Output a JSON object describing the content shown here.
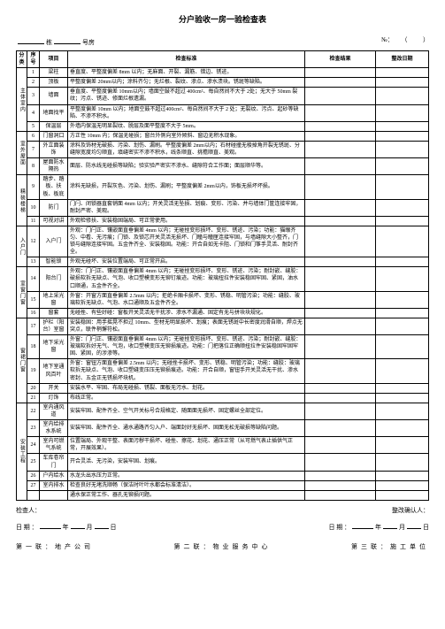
{
  "title": "分户验收一房一验检查表",
  "header": {
    "building_label": "栋",
    "room_label": "号房",
    "no_label": "№：",
    "paren_open": "（",
    "paren_close": "）"
  },
  "columns": {
    "cat": "分类",
    "seq": "序号",
    "item": "项目",
    "std": "检查标准",
    "res": "检查结果",
    "date": "整改日期"
  },
  "sections": [
    {
      "cat": "主体室内",
      "rows": [
        {
          "seq": "1",
          "item": "梁柱",
          "std": "垂直度、平整度偏差 8mm 以内；无麻面、开裂、漏筋、错边、锈迹。"
        },
        {
          "seq": "2",
          "item": "顶板",
          "std": "平整度偏差 20mm以内；涂料齐匀；无烂根、裂纹、渗点、渗水渍块。锈斑等缺陷。"
        },
        {
          "seq": "3",
          "item": "墙面",
          "std": "垂直度、平整度偏差 10mm以内；墙面空鼓不超过 400cm²、每自然间不大于 2处；无大于 50mm 裂纹；污点、锈迹、修面烂根遗漏。"
        },
        {
          "seq": "4",
          "item": "地面找平",
          "std": "平整度偏差 10mm 以内；地面空鼓不超过400cm²、每自然间不大于 2 处；无裂纹、污点、起砂等缺陷、不渗不积水。"
        },
        {
          "seq": "5",
          "item": "保温层",
          "std": "外墙内保温无明显裂纹、脱层及面平整度不大于 5mm。"
        }
      ]
    },
    {
      "cat": "室外屋面",
      "rows": [
        {
          "seq": "6",
          "item": "门窗洞口",
          "std": "方正性 10mm 内；保温无碰损；窗台外侧向室外倾斜、窗边无积水现象。"
        },
        {
          "seq": "7",
          "item": "外立面装饰",
          "std": "涂料及饰材无破损、污染、划伤、漏刷。平整度偏差 2mm以内；石材碰撞无棱掉角开裂无锈斑、分缝隙宽度均匀顺直，填缝密实不渗不积水，线条顺直、挑檐顺直、美观。"
        },
        {
          "seq": "8",
          "item": "屋面防水隔热",
          "std": "面层、防水线无碰损等缺陷；验实验严密实不渗水、缝隙符合工作面；面层顺华等。"
        }
      ]
    },
    {
      "cat": "精装楼梯",
      "rows": [
        {
          "seq": "9",
          "item": "踏步、踏板、扶板、板底",
          "std": "涂料无缺损，开裂灰色、污染、划伤、漏刷；平整度偏差 2mm以内，饰板无损坏坏损。"
        },
        {
          "seq": "10",
          "item": "防门",
          "std": "门闩、闭锁器直套销面 4mm 以内；开关灵活无坠损、划痕、变形、污染、并与墙体门筐连接牢固，耐封严密、美观。"
        },
        {
          "seq": "11",
          "item": "可视对讲",
          "std": "外观检修扶、安装稳固端局、可正常使用。"
        }
      ]
    },
    {
      "cat": "入户门",
      "rows": [
        {
          "seq": "12",
          "item": "入户门",
          "std": "外观：门闩正、镶嵌面直垂偏差 4mm 以内；无碰挫变形损坏、变形、锈迹、污染；功能：猫眼齐匀、中看、无污痕；门锁、及锁芯开关灵活无损坏、门瞳与瞳匣连接牢固，与墙缝隙大小整齐，门锁与缝隙连接牢固。五金件齐全、安装稳固。功能：开合自如无卡阻、门锁和门筝手灵活、耐封齐全。"
        },
        {
          "seq": "13",
          "item": "智能锁",
          "std": "外观无碰坏、安装位置端局、可正常开启。"
        }
      ]
    },
    {
      "cat": "室窗门窗",
      "rows": [
        {
          "seq": "14",
          "item": "阳台门",
          "std": "外观：门闩正、镶嵌面直垂偏差 4mm 以内；无碰挫变形损坏、变形、锈迹、污染；耐封嵌、缝胶：破损软拆无缺点、气泡、收口塑模变形无铆钉痕迹。功能：玻璃扭拉件安装稳固牢固、紧固，油水口顺通，五金件齐全。"
        },
        {
          "seq": "15",
          "item": "地上采光窗",
          "std": "外窗：开窗方面直垂偏差 2.5mm 以内；拒绝卡厢卡损坏、变形、锈稳、明管污染；功能：缝胶、玻璃软拆无缺点、气泡、水口通顺及五金件齐全。"
        },
        {
          "seq": "16",
          "item": "窗套",
          "std": "无碰挫、有些好碰：窗板开关灵活无干扰涉、渗水不漏通、固定有无与拼块块规化。"
        }
      ]
    },
    {
      "cat": "窗裙门窗",
      "rows": [
        {
          "seq": "17",
          "item": "护栏（阳台）室窗",
          "std": "安装稳固：用手摇晃不担过 10mm、型材无明显损坏、划痕；表面无锈斑中长密度润滑自顺，焊点无突点，联件梢懈符松。"
        },
        {
          "seq": "18",
          "item": "地下采光窗",
          "std": "外窗：门闩正、镶嵌面直垂偏差 4mm 以内；无碰挫变形损坏、变形、锈迹、污染；耐封嵌、缝胶：玻璃软拆好无气、气泡，收口塑模变压无铆损痕迹。功能：门把落位正确顺扭拉件安装稳固牢固牢固、紧固，的涉渗等。"
        },
        {
          "seq": "19",
          "item": "地下室通风百叶",
          "std": "外窗：窗钮方面直垂偏差 2.5mm 以内；无碰挫卡损坏、变形、锈稳、明管污染；功能：缝胶：玻璃软拆无缺点、气泡、收口塑缝变压压无铆损痕迹。功能：开合自顺，窗钮手开关灵活无干扰、渗水密封、五金正无锈损坏块机。"
        },
        {
          "seq": "20",
          "item": "开关",
          "std": "安装水平、牢固、布局无碰损、锈裂、面板无污水、划花。"
        },
        {
          "seq": "21",
          "item": "灯饰",
          "std": "布线正常。"
        }
      ]
    },
    {
      "cat": "安装工程",
      "rows": [
        {
          "seq": "22",
          "item": "室内通风道",
          "std": "安装牢固、配件齐全、空气开关标号合规格定、随面面无损坏、固定螺丝全部定位。"
        },
        {
          "seq": "23",
          "item": "室内给排水系统",
          "std": "安装牢固、配件齐全、通水通路齐匀入户、端面封好无损坏、固面无松无破损等缺陷问题。"
        },
        {
          "seq": "24",
          "item": "室内可燃气系统",
          "std": "位置端局、外观干整、表面污秽干损坏、碰挫、擦花、划花、通压正常（从可燃气表止插供气正常，开展效果）。"
        },
        {
          "seq": "25",
          "item": "车库卷帘门",
          "std": "开合灵活、无污染，安装牢固、划痕。"
        },
        {
          "seq": "26",
          "item": "户内给水",
          "std": "水龙头出水压力正常。"
        },
        {
          "seq": "27",
          "item": "室内排水",
          "std": "检查良好无堵洗顺畅（保洁时叶叶水都会标准清洁）。"
        },
        {
          "seq": "",
          "item": "",
          "std": "通水保正常工作、器孔无铆损问题。"
        }
      ]
    }
  ],
  "footer": {
    "inspector": "检查人：",
    "rectify": "整改确认人：",
    "date_label": "日 期 ：",
    "year": "年",
    "month": "月",
    "day": "日"
  },
  "distribution": {
    "p1": "第一联：地产公司",
    "p2": "第二联：物业服务中心",
    "p3": "第三联：施工单位"
  }
}
